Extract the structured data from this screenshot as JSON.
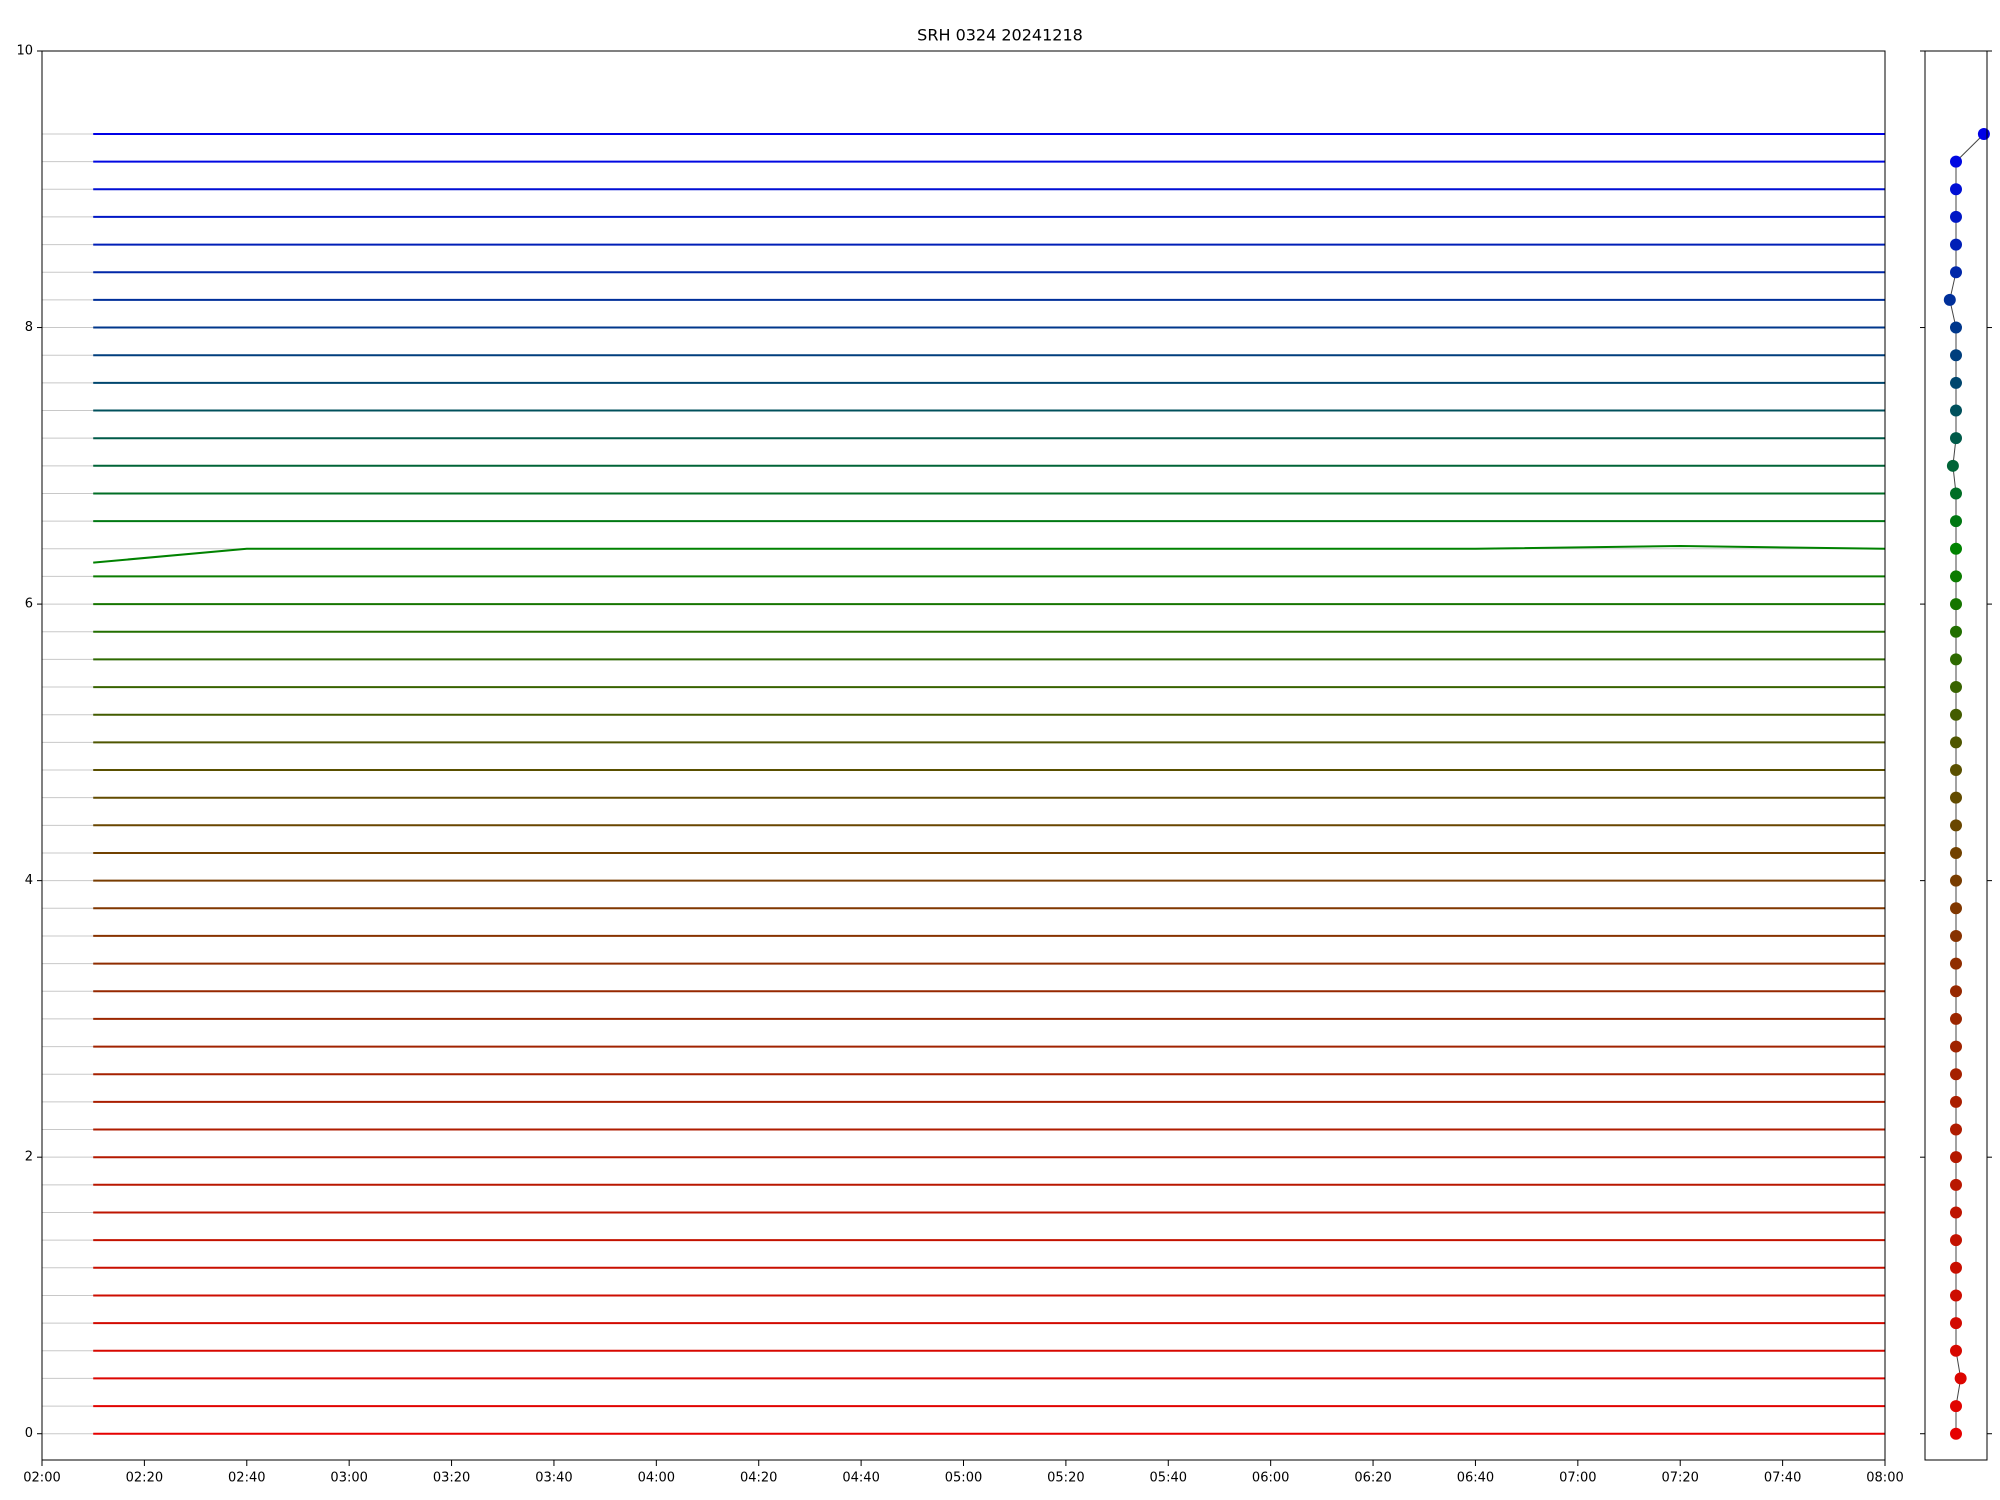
{
  "chart_data": [
    {
      "type": "line",
      "title": "SRH 0324 20241218",
      "x": [
        "02:10",
        "02:40",
        "03:20",
        "04:00",
        "04:40",
        "05:20",
        "06:00",
        "06:40",
        "07:20",
        "08:00"
      ],
      "xlim": [
        "02:00",
        "08:00"
      ],
      "xticks": [
        "02:00",
        "02:20",
        "02:40",
        "03:00",
        "03:20",
        "03:40",
        "04:00",
        "04:20",
        "04:40",
        "05:00",
        "05:20",
        "05:40",
        "06:00",
        "06:20",
        "06:40",
        "07:00",
        "07:20",
        "07:40",
        "08:00"
      ],
      "ylim": [
        -0.19,
        10
      ],
      "yticks": [
        0,
        2,
        4,
        6,
        8,
        10
      ],
      "grid": true,
      "series": [
        {
          "color": "#e60000",
          "values": [
            0,
            0,
            0,
            0,
            0,
            0,
            0,
            0,
            0,
            0
          ]
        },
        {
          "color": "#e10300",
          "values": [
            0.2,
            0.2,
            0.2,
            0.2,
            0.2,
            0.2,
            0.2,
            0.2,
            0.2,
            0.2
          ]
        },
        {
          "color": "#dc0500",
          "values": [
            0.4,
            0.4,
            0.4,
            0.4,
            0.4,
            0.4,
            0.4,
            0.4,
            0.4,
            0.4
          ]
        },
        {
          "color": "#d70800",
          "values": [
            0.6,
            0.6,
            0.6,
            0.6,
            0.6,
            0.6,
            0.6,
            0.6,
            0.6,
            0.6
          ]
        },
        {
          "color": "#d20a00",
          "values": [
            0.8,
            0.8,
            0.8,
            0.8,
            0.8,
            0.8,
            0.8,
            0.8,
            0.8,
            0.8
          ]
        },
        {
          "color": "#cd0d00",
          "values": [
            1,
            1,
            1,
            1,
            1,
            1,
            1,
            1,
            1,
            1
          ]
        },
        {
          "color": "#c80f00",
          "values": [
            1.2,
            1.2,
            1.2,
            1.2,
            1.2,
            1.2,
            1.2,
            1.2,
            1.2,
            1.2
          ]
        },
        {
          "color": "#c31200",
          "values": [
            1.4,
            1.4,
            1.4,
            1.4,
            1.4,
            1.4,
            1.4,
            1.4,
            1.4,
            1.4
          ]
        },
        {
          "color": "#be1400",
          "values": [
            1.6,
            1.6,
            1.6,
            1.6,
            1.6,
            1.6,
            1.6,
            1.6,
            1.6,
            1.6
          ]
        },
        {
          "color": "#b91700",
          "values": [
            1.8,
            1.8,
            1.8,
            1.8,
            1.8,
            1.8,
            1.8,
            1.8,
            1.8,
            1.8
          ]
        },
        {
          "color": "#b41900",
          "values": [
            2,
            2,
            2,
            2,
            2,
            2,
            2,
            2,
            2,
            2
          ]
        },
        {
          "color": "#af1c00",
          "values": [
            2.2,
            2.2,
            2.2,
            2.2,
            2.2,
            2.2,
            2.2,
            2.2,
            2.2,
            2.2
          ]
        },
        {
          "color": "#aa1e00",
          "values": [
            2.4,
            2.4,
            2.4,
            2.4,
            2.4,
            2.4,
            2.4,
            2.4,
            2.4,
            2.4
          ]
        },
        {
          "color": "#a52100",
          "values": [
            2.6,
            2.6,
            2.6,
            2.6,
            2.6,
            2.6,
            2.6,
            2.6,
            2.6,
            2.6
          ]
        },
        {
          "color": "#a02300",
          "values": [
            2.8,
            2.8,
            2.8,
            2.8,
            2.8,
            2.8,
            2.8,
            2.8,
            2.8,
            2.8
          ]
        },
        {
          "color": "#9b2600",
          "values": [
            3,
            3,
            3,
            3,
            3,
            3,
            3,
            3,
            3,
            3
          ]
        },
        {
          "color": "#962800",
          "values": [
            3.2,
            3.2,
            3.2,
            3.2,
            3.2,
            3.2,
            3.2,
            3.2,
            3.2,
            3.2
          ]
        },
        {
          "color": "#8f2d00",
          "values": [
            3.4,
            3.4,
            3.4,
            3.4,
            3.4,
            3.4,
            3.4,
            3.4,
            3.4,
            3.4
          ]
        },
        {
          "color": "#873200",
          "values": [
            3.6,
            3.6,
            3.6,
            3.6,
            3.6,
            3.6,
            3.6,
            3.6,
            3.6,
            3.6
          ]
        },
        {
          "color": "#803700",
          "values": [
            3.8,
            3.8,
            3.8,
            3.8,
            3.8,
            3.8,
            3.8,
            3.8,
            3.8,
            3.8
          ]
        },
        {
          "color": "#783c00",
          "values": [
            4,
            4,
            4,
            4,
            4,
            4,
            4,
            4,
            4,
            4
          ]
        },
        {
          "color": "#714100",
          "values": [
            4.2,
            4.2,
            4.2,
            4.2,
            4.2,
            4.2,
            4.2,
            4.2,
            4.2,
            4.2
          ]
        },
        {
          "color": "#694600",
          "values": [
            4.4,
            4.4,
            4.4,
            4.4,
            4.4,
            4.4,
            4.4,
            4.4,
            4.4,
            4.4
          ]
        },
        {
          "color": "#624b00",
          "values": [
            4.6,
            4.6,
            4.6,
            4.6,
            4.6,
            4.6,
            4.6,
            4.6,
            4.6,
            4.6
          ]
        },
        {
          "color": "#5a5000",
          "values": [
            4.8,
            4.8,
            4.8,
            4.8,
            4.8,
            4.8,
            4.8,
            4.8,
            4.8,
            4.8
          ]
        },
        {
          "color": "#4f5600",
          "values": [
            5,
            5,
            5,
            5,
            5,
            5,
            5,
            5,
            5,
            5
          ]
        },
        {
          "color": "#435c00",
          "values": [
            5.2,
            5.2,
            5.2,
            5.2,
            5.2,
            5.2,
            5.2,
            5.2,
            5.2,
            5.2
          ]
        },
        {
          "color": "#386300",
          "values": [
            5.4,
            5.4,
            5.4,
            5.4,
            5.4,
            5.4,
            5.4,
            5.4,
            5.4,
            5.4
          ]
        },
        {
          "color": "#2d6900",
          "values": [
            5.6,
            5.6,
            5.6,
            5.6,
            5.6,
            5.6,
            5.6,
            5.6,
            5.6,
            5.6
          ]
        },
        {
          "color": "#226f00",
          "values": [
            5.8,
            5.8,
            5.8,
            5.8,
            5.8,
            5.8,
            5.8,
            5.8,
            5.8,
            5.8
          ]
        },
        {
          "color": "#167500",
          "values": [
            6,
            6,
            6,
            6,
            6,
            6,
            6,
            6,
            6,
            6
          ]
        },
        {
          "color": "#0b7c00",
          "values": [
            6.2,
            6.2,
            6.2,
            6.2,
            6.2,
            6.2,
            6.2,
            6.2,
            6.2,
            6.2
          ]
        },
        {
          "color": "#008200",
          "values": [
            6.3,
            6.4,
            6.4,
            6.4,
            6.4,
            6.4,
            6.4,
            6.4,
            6.42,
            6.4
          ]
        },
        {
          "color": "#007812",
          "values": [
            6.6,
            6.6,
            6.6,
            6.6,
            6.6,
            6.6,
            6.6,
            6.6,
            6.6,
            6.6
          ]
        },
        {
          "color": "#006e25",
          "values": [
            6.8,
            6.8,
            6.8,
            6.8,
            6.8,
            6.8,
            6.8,
            6.8,
            6.8,
            6.8
          ]
        },
        {
          "color": "#006437",
          "values": [
            7,
            7,
            7,
            7,
            7,
            7,
            7,
            7,
            7,
            7
          ]
        },
        {
          "color": "#005a49",
          "values": [
            7.2,
            7.2,
            7.2,
            7.2,
            7.2,
            7.2,
            7.2,
            7.2,
            7.2,
            7.2
          ]
        },
        {
          "color": "#00505c",
          "values": [
            7.4,
            7.4,
            7.4,
            7.4,
            7.4,
            7.4,
            7.4,
            7.4,
            7.4,
            7.4
          ]
        },
        {
          "color": "#00466e",
          "values": [
            7.6,
            7.6,
            7.6,
            7.6,
            7.6,
            7.6,
            7.6,
            7.6,
            7.6,
            7.6
          ]
        },
        {
          "color": "#003e7d",
          "values": [
            7.8,
            7.8,
            7.8,
            7.8,
            7.8,
            7.8,
            7.8,
            7.8,
            7.8,
            7.8
          ]
        },
        {
          "color": "#00378b",
          "values": [
            8,
            8,
            8,
            8,
            8,
            8,
            8,
            8,
            8,
            8
          ]
        },
        {
          "color": "#002f9a",
          "values": [
            8.2,
            8.2,
            8.2,
            8.2,
            8.2,
            8.2,
            8.2,
            8.2,
            8.2,
            8.2
          ]
        },
        {
          "color": "#0027a8",
          "values": [
            8.4,
            8.4,
            8.4,
            8.4,
            8.4,
            8.4,
            8.4,
            8.4,
            8.4,
            8.4
          ]
        },
        {
          "color": "#001fb7",
          "values": [
            8.6,
            8.6,
            8.6,
            8.6,
            8.6,
            8.6,
            8.6,
            8.6,
            8.6,
            8.6
          ]
        },
        {
          "color": "#0017c5",
          "values": [
            8.8,
            8.8,
            8.8,
            8.8,
            8.8,
            8.8,
            8.8,
            8.8,
            8.8,
            8.8
          ]
        },
        {
          "color": "#000fd4",
          "values": [
            9,
            9,
            9,
            9,
            9,
            9,
            9,
            9,
            9,
            9
          ]
        },
        {
          "color": "#0008e2",
          "values": [
            9.2,
            9.2,
            9.2,
            9.2,
            9.2,
            9.2,
            9.2,
            9.2,
            9.2,
            9.2
          ]
        },
        {
          "color": "#0000e6",
          "values": [
            9.4,
            9.4,
            9.4,
            9.4,
            9.4,
            9.4,
            9.4,
            9.4,
            9.4,
            9.4
          ]
        }
      ]
    },
    {
      "type": "scatter",
      "xlim": [
        -1,
        1
      ],
      "ylim": [
        -0.19,
        10
      ],
      "x": [
        0,
        0,
        0.15,
        0,
        0,
        0,
        0,
        0,
        0,
        0,
        0,
        0,
        0,
        0,
        0,
        0,
        0,
        0,
        0,
        0,
        0,
        0,
        0,
        0,
        0,
        0,
        0,
        0,
        0,
        0,
        0,
        0,
        0,
        0,
        0,
        -0.1,
        0,
        0,
        0,
        0,
        0,
        -0.2,
        0,
        0,
        0,
        0,
        0,
        0.9
      ],
      "values": [
        0,
        0.2,
        0.4,
        0.6,
        0.8,
        1,
        1.2,
        1.4,
        1.6,
        1.8,
        2,
        2.2,
        2.4,
        2.6,
        2.8,
        3,
        3.2,
        3.4,
        3.6,
        3.8,
        4,
        4.2,
        4.4,
        4.6,
        4.8,
        5,
        5.2,
        5.4,
        5.6,
        5.8,
        6,
        6.2,
        6.4,
        6.6,
        6.8,
        7,
        7.2,
        7.4,
        7.6,
        7.8,
        8,
        8.2,
        8.4,
        8.6,
        8.8,
        9,
        9.2,
        9.4
      ]
    }
  ]
}
